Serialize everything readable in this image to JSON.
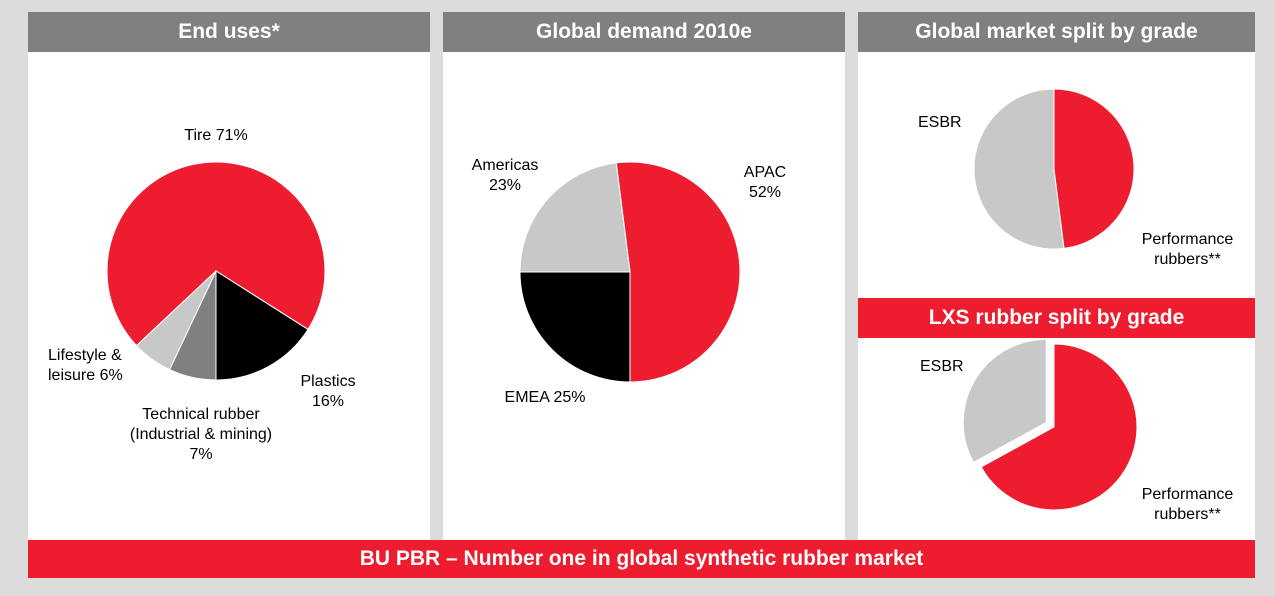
{
  "footer": "BU PBR – Number one in global synthetic rubber market",
  "chart_data": [
    {
      "type": "pie",
      "title": "End uses*",
      "categories": [
        "Tire",
        "Plastics",
        "Technical rubber (Industrial & mining)",
        "Lifestyle & leisure"
      ],
      "values": [
        71,
        16,
        7,
        6
      ],
      "value_labels": [
        "71%",
        "16%",
        "7%",
        "6%"
      ],
      "colors": [
        "#ed1c2e",
        "#000000",
        "#808080",
        "#c8c8c8"
      ]
    },
    {
      "type": "pie",
      "title": "Global demand 2010e",
      "categories": [
        "APAC",
        "EMEA",
        "Americas"
      ],
      "values": [
        52,
        25,
        23
      ],
      "value_labels": [
        "52%",
        "25%",
        "23%"
      ],
      "colors": [
        "#ed1c2e",
        "#000000",
        "#c8c8c8"
      ]
    },
    {
      "type": "pie",
      "title": "Global market split by grade",
      "categories": [
        "ESBR",
        "Performance rubbers**"
      ],
      "values": [
        52,
        48
      ],
      "colors": [
        "#c8c8c8",
        "#ed1c2e"
      ]
    },
    {
      "type": "pie",
      "title": "LXS rubber split by grade",
      "categories": [
        "ESBR",
        "Performance rubbers**"
      ],
      "values": [
        33,
        67
      ],
      "colors": [
        "#c8c8c8",
        "#ed1c2e"
      ]
    }
  ]
}
